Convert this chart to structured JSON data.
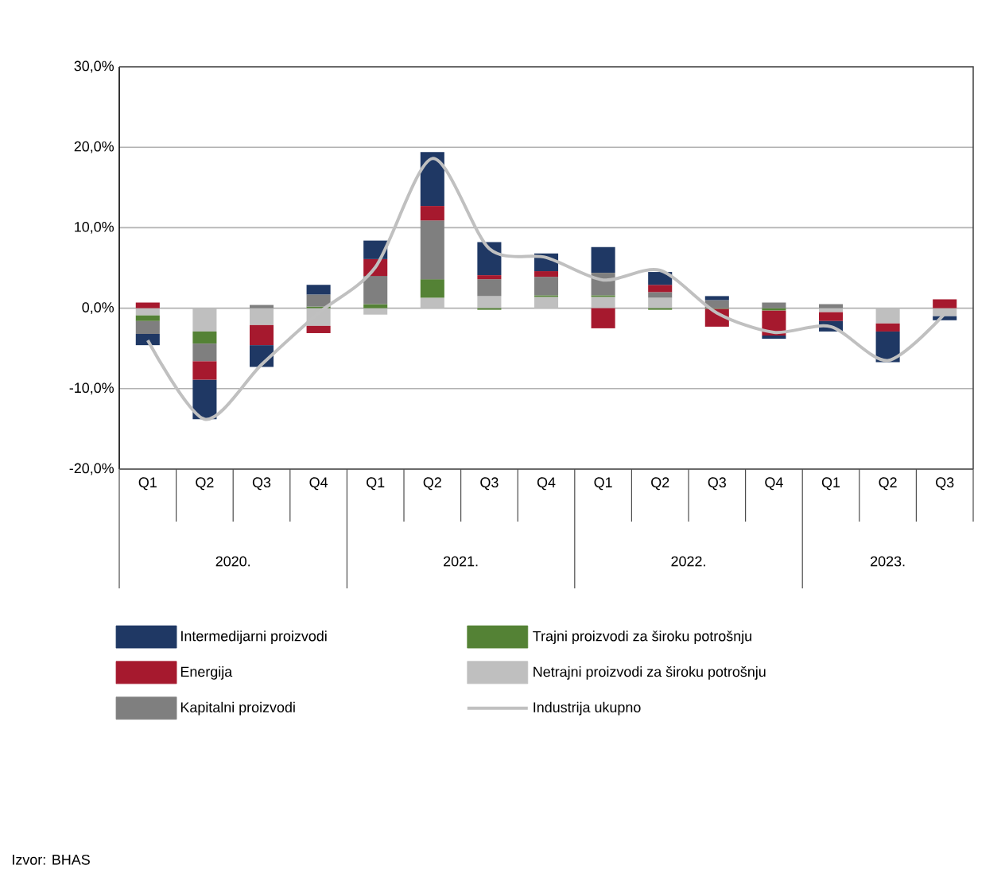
{
  "chart_data": {
    "type": "bar",
    "stacked": true,
    "categories": [
      "Q1",
      "Q2",
      "Q3",
      "Q4",
      "Q1",
      "Q2",
      "Q3",
      "Q4",
      "Q1",
      "Q2",
      "Q3",
      "Q4",
      "Q1",
      "Q2",
      "Q3"
    ],
    "series": [
      {
        "name": "Netrajni proizvodi za široku potrošnju",
        "color": "#bfbfbf",
        "values": [
          -0.9,
          -2.9,
          -2.1,
          -2.2,
          -0.8,
          1.3,
          1.5,
          1.4,
          1.4,
          1.3,
          0,
          0,
          -0.5,
          -1.9,
          -1.0
        ]
      },
      {
        "name": "Trajni proizvodi za široku potrošnju",
        "color": "#548235",
        "values": [
          -0.7,
          -1.5,
          0,
          0.2,
          0.5,
          2.3,
          -0.2,
          0.2,
          0.2,
          -0.2,
          -0.1,
          -0.3,
          0,
          0,
          0
        ]
      },
      {
        "name": "Kapitalni proizvodi",
        "color": "#7f7f7f",
        "values": [
          -1.6,
          -2.2,
          0.4,
          1.5,
          3.5,
          7.3,
          2.1,
          2.3,
          2.8,
          0.7,
          1.0,
          0.7,
          0.5,
          0,
          0
        ]
      },
      {
        "name": "Energija",
        "color": "#a6192e",
        "values": [
          0.7,
          -2.3,
          -2.5,
          -0.9,
          2.1,
          1.8,
          0.5,
          0.7,
          -2.5,
          0.9,
          -2.2,
          -3.1,
          -1.1,
          -1.0,
          1.1
        ]
      },
      {
        "name": "Intermedijarni proizvodi",
        "color": "#1f3864",
        "values": [
          -1.4,
          -4.9,
          -2.7,
          1.2,
          2.3,
          6.7,
          4.1,
          2.2,
          3.2,
          1.6,
          0.5,
          -0.4,
          -1.3,
          -3.8,
          -0.5
        ]
      },
      {
        "name": "Industrija ukupno",
        "type": "line",
        "color": "#c0c0c0",
        "values": [
          -4.0,
          -13.8,
          -7.0,
          -0.6,
          5.1,
          18.6,
          7.4,
          6.3,
          3.5,
          4.7,
          -0.6,
          -3.0,
          -2.3,
          -6.5,
          -0.7
        ]
      }
    ],
    "ylim": [
      -20,
      30
    ],
    "yticks": [
      {
        "value": -20,
        "label": "-20,0%"
      },
      {
        "value": -10,
        "label": "-10,0%"
      },
      {
        "value": 0,
        "label": "0,0%"
      },
      {
        "value": 10,
        "label": "10,0%"
      },
      {
        "value": 20,
        "label": "20,0%"
      },
      {
        "value": 30,
        "label": "30,0%"
      }
    ],
    "grid": "y",
    "legend": "bottom",
    "annotations": [
      "2020.",
      "2021.",
      "2022.",
      "2023.",
      "Izvor: BHAS"
    ]
  }
}
